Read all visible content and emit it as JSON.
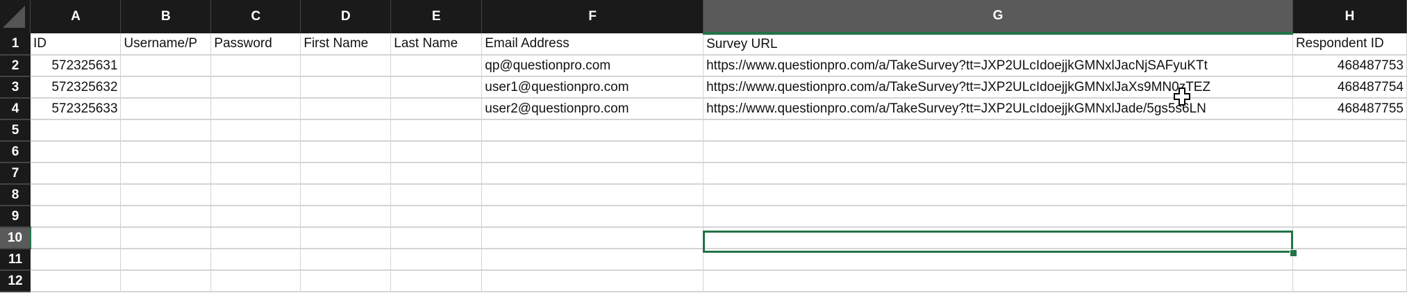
{
  "columns": [
    "A",
    "B",
    "C",
    "D",
    "E",
    "F",
    "G",
    "H"
  ],
  "rows": [
    {
      "n": "1",
      "cells": [
        "ID",
        "Username/P",
        "Password",
        "First Name",
        "Last Name",
        "Email Address",
        "Survey URL",
        "Respondent ID"
      ]
    },
    {
      "n": "2",
      "cells": [
        "572325631",
        "",
        "",
        "",
        "",
        "qp@questionpro.com",
        "https://www.questionpro.com/a/TakeSurvey?tt=JXP2ULcIdoejjkGMNxlJacNjSAFyuKTt",
        "468487753"
      ]
    },
    {
      "n": "3",
      "cells": [
        "572325632",
        "",
        "",
        "",
        "",
        "user1@questionpro.com",
        "https://www.questionpro.com/a/TakeSurvey?tt=JXP2ULcIdoejjkGMNxlJaXs9MN0zTEZ",
        "468487754"
      ]
    },
    {
      "n": "4",
      "cells": [
        "572325633",
        "",
        "",
        "",
        "",
        "user2@questionpro.com",
        "https://www.questionpro.com/a/TakeSurvey?tt=JXP2ULcIdoejjkGMNxlJade/5gs5s6LN",
        "468487755"
      ]
    },
    {
      "n": "5",
      "cells": [
        "",
        "",
        "",
        "",
        "",
        "",
        "",
        ""
      ]
    },
    {
      "n": "6",
      "cells": [
        "",
        "",
        "",
        "",
        "",
        "",
        "",
        ""
      ]
    },
    {
      "n": "7",
      "cells": [
        "",
        "",
        "",
        "",
        "",
        "",
        "",
        ""
      ]
    },
    {
      "n": "8",
      "cells": [
        "",
        "",
        "",
        "",
        "",
        "",
        "",
        ""
      ]
    },
    {
      "n": "9",
      "cells": [
        "",
        "",
        "",
        "",
        "",
        "",
        "",
        ""
      ]
    },
    {
      "n": "10",
      "cells": [
        "",
        "",
        "",
        "",
        "",
        "",
        "",
        ""
      ]
    },
    {
      "n": "11",
      "cells": [
        "",
        "",
        "",
        "",
        "",
        "",
        "",
        ""
      ]
    },
    {
      "n": "12",
      "cells": [
        "",
        "",
        "",
        "",
        "",
        "",
        "",
        ""
      ]
    }
  ],
  "selection": {
    "cell": "G10",
    "column": "G",
    "row": "10"
  },
  "colors": {
    "header_bg": "#1a1a1a",
    "selected_header_bg": "#5a5a5a",
    "accent": "#217346",
    "gridline": "#d4d4d4"
  }
}
